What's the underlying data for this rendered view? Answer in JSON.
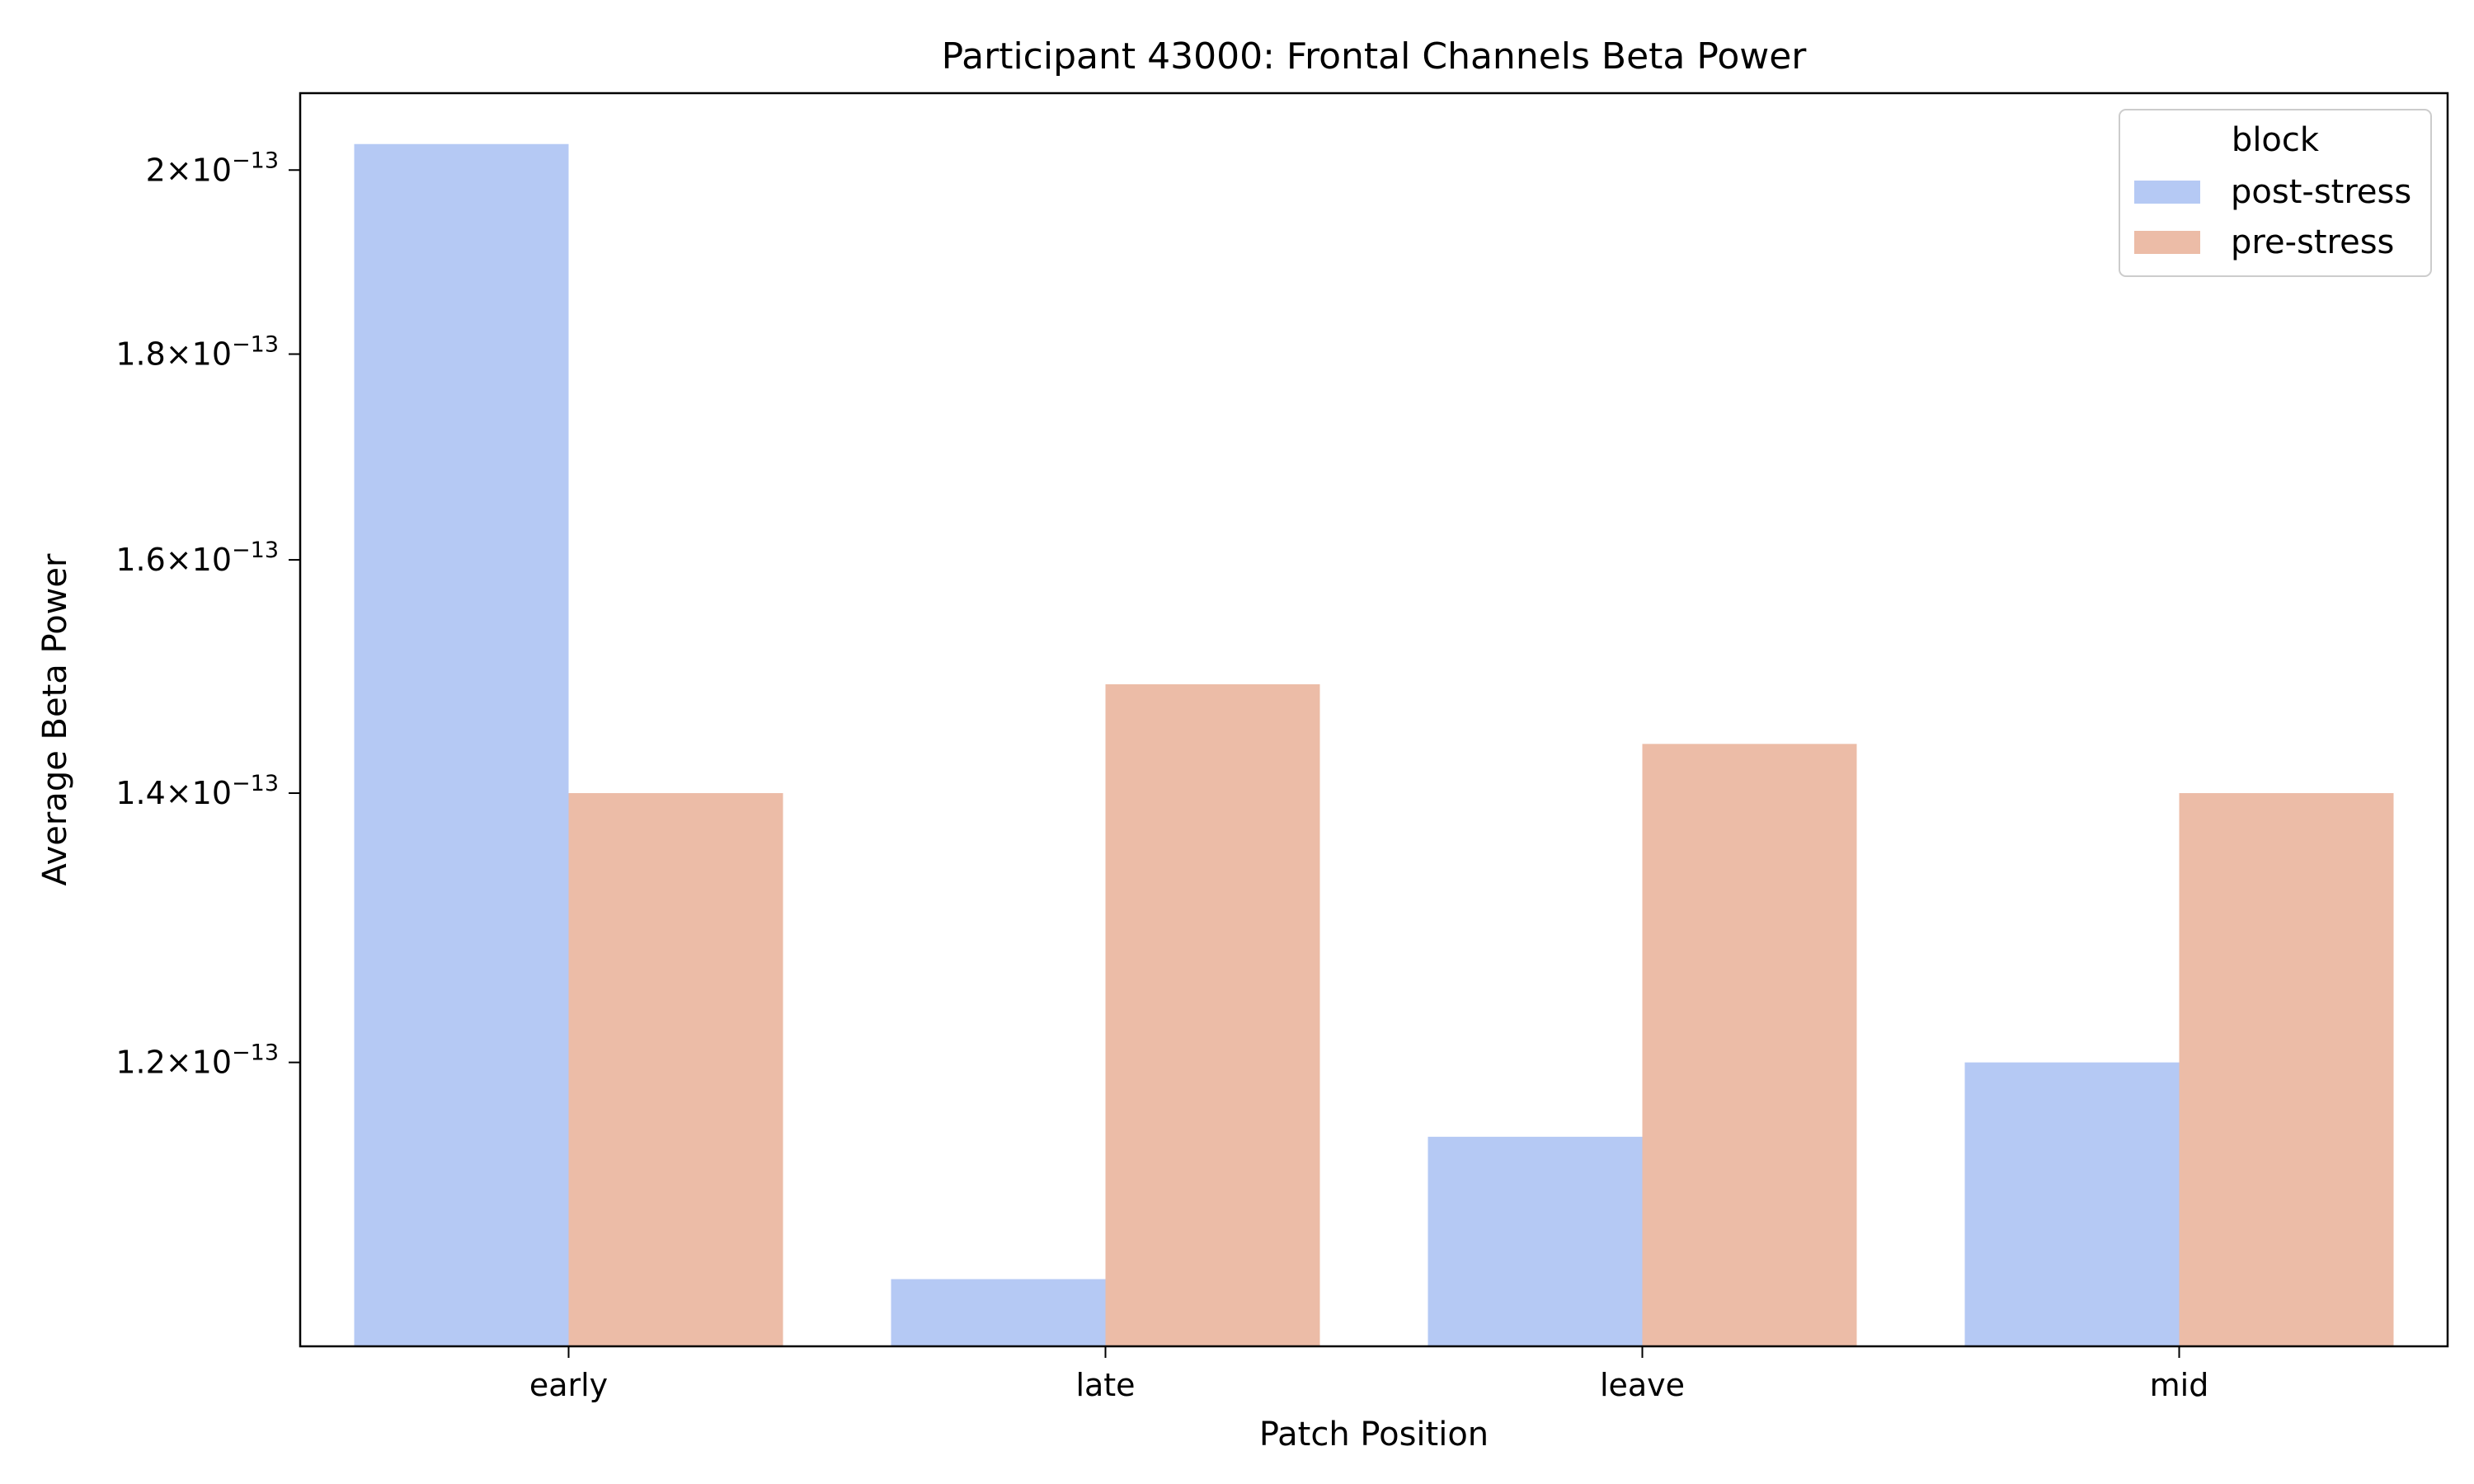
{
  "chart_data": {
    "type": "bar",
    "title": "Participant 43000: Frontal Channels Beta Power",
    "xlabel": "Patch Position",
    "ylabel": "Average Beta Power",
    "y_scale": "log",
    "ylim": [
      1.02e-13,
      2.09e-13
    ],
    "categories": [
      "early",
      "late",
      "leave",
      "mid"
    ],
    "y_ticks": [
      {
        "value": 1.2e-13,
        "mantissa": "1.2",
        "exponent": "−13"
      },
      {
        "value": 1.4e-13,
        "mantissa": "1.4",
        "exponent": "−13"
      },
      {
        "value": 1.6e-13,
        "mantissa": "1.6",
        "exponent": "−13"
      },
      {
        "value": 1.8e-13,
        "mantissa": "1.8",
        "exponent": "−13"
      },
      {
        "value": 2e-13,
        "mantissa": "2",
        "exponent": "−13"
      }
    ],
    "series": [
      {
        "name": "post-stress",
        "color": "#b5c9f4",
        "values": [
          2.03e-13,
          1.06e-13,
          1.15e-13,
          1.2e-13
        ]
      },
      {
        "name": "pre-stress",
        "color": "#ecbca7",
        "values": [
          1.4e-13,
          1.49e-13,
          1.44e-13,
          1.4e-13
        ]
      }
    ],
    "legend": {
      "title": "block",
      "position": "top-right"
    },
    "grid": false
  }
}
